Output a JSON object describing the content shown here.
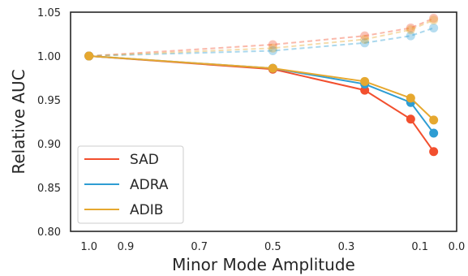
{
  "chart_data": {
    "type": "line",
    "title": "",
    "xlabel": "Minor Mode Amplitude",
    "ylabel": "Relative AUC",
    "x_reversed": true,
    "xlim": [
      1.05,
      0.0
    ],
    "ylim": [
      0.8,
      1.05
    ],
    "x_ticks": [
      1.0,
      0.9,
      0.7,
      0.5,
      0.3,
      0.1,
      0.0
    ],
    "x_tick_labels": [
      "1.0",
      "0.9",
      "0.7",
      "0.5",
      "0.3",
      "0.1",
      "0.0"
    ],
    "y_ticks": [
      0.8,
      0.85,
      0.9,
      0.95,
      1.0,
      1.05
    ],
    "y_tick_labels": [
      "0.80",
      "0.85",
      "0.90",
      "0.95",
      "1.00",
      "1.05"
    ],
    "grid": false,
    "legend_position": "lower-left",
    "x": [
      1.0,
      0.5,
      0.25,
      0.125,
      0.0625
    ],
    "series": [
      {
        "name": "SAD",
        "color": "#f24f2e",
        "style": "solid",
        "values": [
          1.0,
          0.985,
          0.961,
          0.928,
          0.891
        ]
      },
      {
        "name": "ADRA",
        "color": "#2e9dd3",
        "style": "solid",
        "values": [
          1.0,
          0.986,
          0.968,
          0.947,
          0.912
        ]
      },
      {
        "name": "ADIB",
        "color": "#e6a82f",
        "style": "solid",
        "values": [
          1.0,
          0.986,
          0.971,
          0.952,
          0.927
        ]
      },
      {
        "color": "#f24f2e",
        "style": "dashed-faint",
        "values": [
          1.0,
          1.013,
          1.023,
          1.032,
          1.043
        ]
      },
      {
        "color": "#2e9dd3",
        "style": "dashed-faint",
        "values": [
          1.0,
          1.006,
          1.015,
          1.023,
          1.032
        ]
      },
      {
        "color": "#e6a82f",
        "style": "dashed-faint",
        "values": [
          1.0,
          1.009,
          1.019,
          1.03,
          1.041
        ]
      }
    ]
  }
}
